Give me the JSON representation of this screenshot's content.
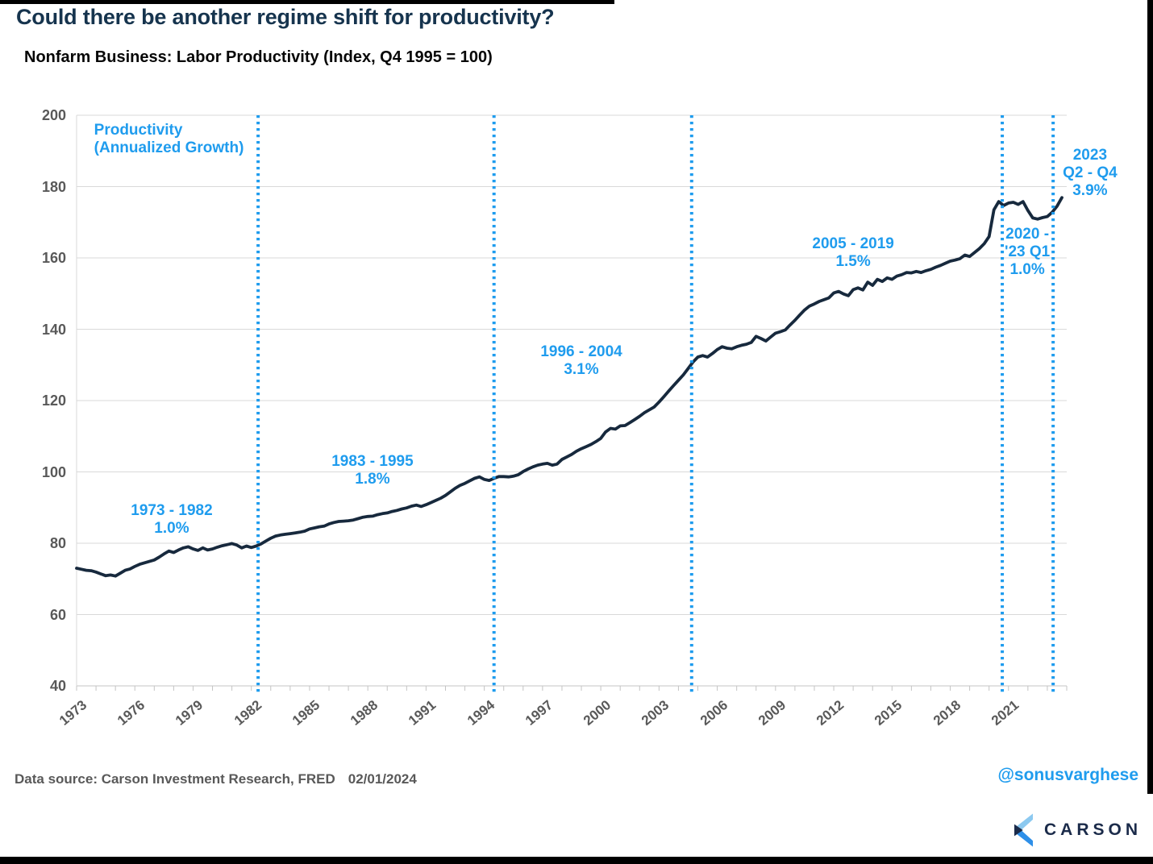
{
  "header": {
    "title": "Could there be another regime shift for productivity?",
    "subtitle": "Nonfarm Business: Labor Productivity (Index, Q4 1995 = 100)"
  },
  "chart_data": {
    "type": "line",
    "title": "Nonfarm Business: Labor Productivity (Index, Q4 1995 = 100)",
    "grid": true,
    "x_axis": {
      "start_year": 1973,
      "end_year": 2024,
      "tick_label_years": [
        1973,
        1976,
        1979,
        1982,
        1985,
        1988,
        1991,
        1994,
        1997,
        2000,
        2003,
        2006,
        2009,
        2012,
        2015,
        2018,
        2021
      ],
      "minor_tick_step_years": 1
    },
    "y_axis": {
      "min": 40,
      "max": 200,
      "tick_step": 20,
      "tick_labels": [
        "40",
        "60",
        "80",
        "100",
        "120",
        "140",
        "160",
        "180",
        "200"
      ]
    },
    "series": [
      {
        "name": "Nonfarm Business Labor Productivity",
        "color": "#17293D",
        "frequency": "quarterly",
        "start_year": 1973,
        "values": [
          73.0,
          72.7,
          72.4,
          72.3,
          71.9,
          71.4,
          70.9,
          71.1,
          70.8,
          71.6,
          72.4,
          72.8,
          73.5,
          74.1,
          74.5,
          74.9,
          75.3,
          76.1,
          77.0,
          77.8,
          77.4,
          78.1,
          78.7,
          79.0,
          78.4,
          78.0,
          78.7,
          78.1,
          78.4,
          78.9,
          79.3,
          79.6,
          79.9,
          79.5,
          78.7,
          79.2,
          78.8,
          79.2,
          79.8,
          80.6,
          81.4,
          82.0,
          82.3,
          82.5,
          82.7,
          82.9,
          83.1,
          83.4,
          84.0,
          84.3,
          84.6,
          84.8,
          85.4,
          85.8,
          86.1,
          86.2,
          86.3,
          86.5,
          86.9,
          87.3,
          87.5,
          87.6,
          88.0,
          88.3,
          88.5,
          88.9,
          89.2,
          89.6,
          89.9,
          90.4,
          90.7,
          90.3,
          90.8,
          91.4,
          92.0,
          92.6,
          93.4,
          94.4,
          95.4,
          96.2,
          96.8,
          97.5,
          98.2,
          98.6,
          97.9,
          97.6,
          98.2,
          98.7,
          98.7,
          98.6,
          98.8,
          99.2,
          100.1,
          100.8,
          101.4,
          101.9,
          102.2,
          102.4,
          101.9,
          102.2,
          103.5,
          104.2,
          104.9,
          105.8,
          106.5,
          107.1,
          107.7,
          108.5,
          109.4,
          111.2,
          112.2,
          112.0,
          112.9,
          113.0,
          113.8,
          114.7,
          115.6,
          116.6,
          117.4,
          118.2,
          119.6,
          121.1,
          122.7,
          124.2,
          125.7,
          127.2,
          129.0,
          130.8,
          132.2,
          132.6,
          132.2,
          133.2,
          134.3,
          135.1,
          134.7,
          134.5,
          135.1,
          135.5,
          135.8,
          136.3,
          138.0,
          137.4,
          136.7,
          137.8,
          138.9,
          139.3,
          139.8,
          141.2,
          142.5,
          144.0,
          145.4,
          146.5,
          147.1,
          147.8,
          148.3,
          148.8,
          150.2,
          150.6,
          149.9,
          149.4,
          151.1,
          151.6,
          151.0,
          153.2,
          152.3,
          154.0,
          153.4,
          154.4,
          154.0,
          154.9,
          155.3,
          155.9,
          155.8,
          156.2,
          155.9,
          156.4,
          156.8,
          157.4,
          157.9,
          158.5,
          159.1,
          159.4,
          159.8,
          160.8,
          160.4,
          161.5,
          162.6,
          164.0,
          166.0,
          173.5,
          175.8,
          174.7,
          175.4,
          175.6,
          175.0,
          175.8,
          173.3,
          171.2,
          170.9,
          171.3,
          171.6,
          172.8,
          174.5,
          176.9
        ]
      }
    ],
    "regime_lines": {
      "color": "#1F9CEE",
      "style": "dotted",
      "years": [
        1982.35,
        1994.5,
        2004.68,
        2020.68,
        2023.3
      ]
    },
    "annotations": [
      {
        "name": "series-label",
        "lines": [
          "Productivity",
          "(Annualized Growth)"
        ],
        "year": 1973.9,
        "value": 198.2,
        "anchor": "top-left"
      },
      {
        "name": "regime-1973-1982",
        "lines": [
          "1973 - 1982",
          "1.0%"
        ],
        "year": 1977.9,
        "value": 86.6,
        "anchor": "center"
      },
      {
        "name": "regime-1983-1995",
        "lines": [
          "1983 - 1995",
          "1.8%"
        ],
        "year": 1988.24,
        "value": 100.3,
        "anchor": "center"
      },
      {
        "name": "regime-1996-2004",
        "lines": [
          "1996 - 2004",
          "3.1%"
        ],
        "year": 1999.0,
        "value": 131.1,
        "anchor": "center"
      },
      {
        "name": "regime-2005-2019",
        "lines": [
          "2005 - 2019",
          "1.5%"
        ],
        "year": 2013.0,
        "value": 161.4,
        "anchor": "center"
      },
      {
        "name": "regime-2020-23q1",
        "lines": [
          "2020 -",
          "'23 Q1",
          "1.0%"
        ],
        "year": 2021.97,
        "value": 161.6,
        "anchor": "center"
      },
      {
        "name": "regime-2023-q2q4",
        "lines": [
          "2023",
          "Q2 - Q4",
          "3.9%"
        ],
        "year": 2025.2,
        "value": 183.7,
        "anchor": "center"
      }
    ]
  },
  "footer": {
    "source_label": "Data source: Carson Investment Research, FRED",
    "source_date": "02/01/2024",
    "handle": "@sonusvarghese",
    "logo_text": "CARSON"
  },
  "colors": {
    "accent_blue": "#1F9CEE",
    "line_navy": "#17293D",
    "title_navy": "#16344E",
    "axis_gray": "#595959",
    "grid_gray": "#D9D9D9",
    "axis_line_gray": "#C4C4C4",
    "logo_navy": "#1B2B4A",
    "logo_light_blue": "#8CC9F0",
    "logo_mid_blue": "#2E8FE8"
  }
}
